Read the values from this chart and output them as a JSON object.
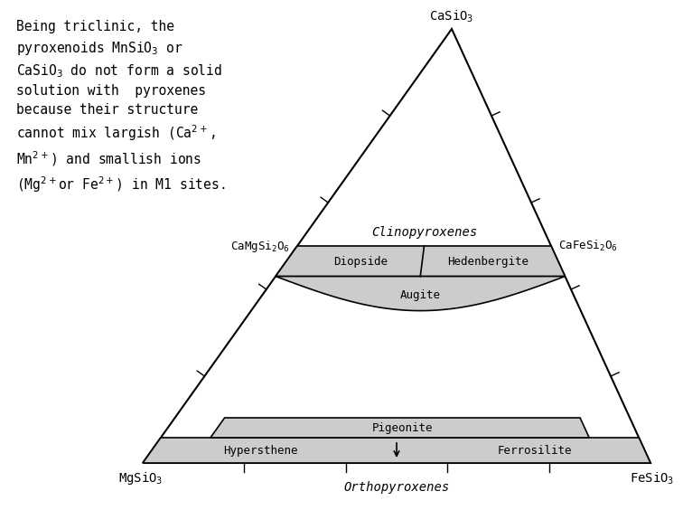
{
  "apex_label": "CaSiO$_3$",
  "bottom_left_label": "MgSiO$_3$",
  "bottom_right_label": "FeSiO$_3$",
  "left_mid_label": "CaMgSi$_2$O$_6$",
  "right_mid_label": "CaFeSi$_2$O$_6$",
  "bottom_mid_label": "Orthopyroxenes",
  "clinopyroxenes_label": "Clinopyroxenes",
  "diopside_label": "Diopside",
  "hedenbergite_label": "Hedenbergite",
  "augite_label": "Augite",
  "pigeonite_label": "Pigeonite",
  "hypersthene_label": "Hypersthene",
  "ferrosilite_label": "Ferrosilite",
  "annotation_lines": [
    "Being triclinic, the",
    "pyroxenoids MnSiO$_3$ or",
    "CaSiO$_3$ do not form a solid",
    "solution with  pyroxenes",
    "because their structure",
    "cannot mix largish (Ca$^{2+}$,",
    "Mn$^{2+}$) and smallish ions",
    "(Mg$^{2+}$or Fe$^{2+}$) in M1 sites."
  ],
  "bg_color": "#ffffff",
  "triangle_color": "#000000",
  "shade_color": "#cccccc",
  "font_size_annotation": 10.5,
  "font_size_corner": 10,
  "font_size_minerals": 9,
  "font_size_italic": 10
}
